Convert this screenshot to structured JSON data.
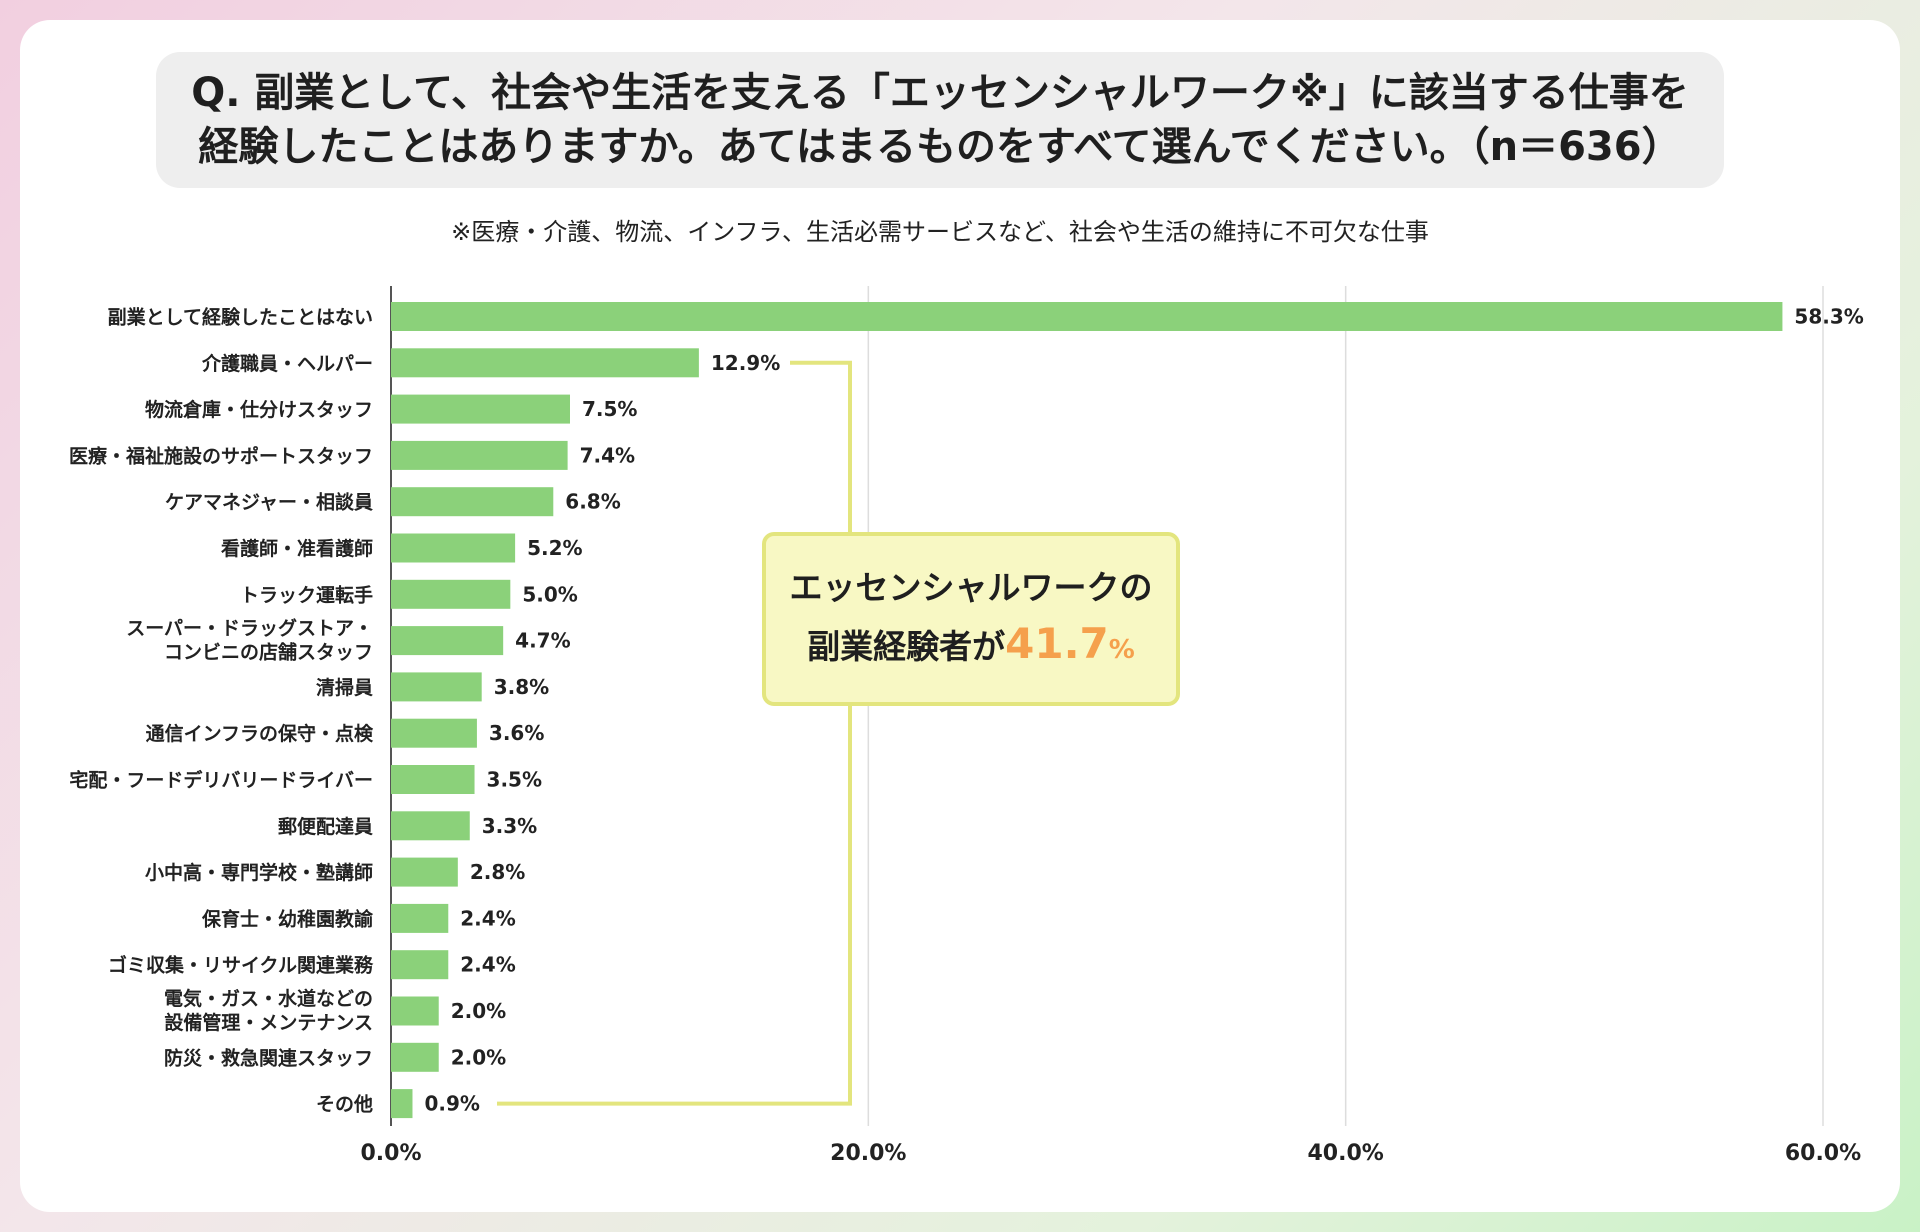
{
  "title": {
    "line1": "Q. 副業として、社会や生活を支える「エッセンシャルワーク※」に該当する仕事を",
    "line2": "経験したことはありますか。あてはまるものをすべて選んでください。（n＝636）"
  },
  "note": "※医療・介護、物流、インフラ、生活必需サービスなど、社会や生活の維持に不可欠な仕事",
  "callout": {
    "line1": "エッセンシャルワークの",
    "line2_prefix": "副業経験者が",
    "value": "41.7",
    "unit": "%"
  },
  "colors": {
    "bar": "#8bd17a",
    "bracket": "#e3e57e",
    "accent": "#f5a04c"
  },
  "chart_data": {
    "type": "bar",
    "orientation": "horizontal",
    "categories": [
      "副業として経験したことはない",
      "介護職員・ヘルパー",
      "物流倉庫・仕分けスタッフ",
      "医療・福祉施設のサポートスタッフ",
      "ケアマネジャー・相談員",
      "看護師・准看護師",
      "トラック運転手",
      "スーパー・ドラッグストア・\nコンビニの店舗スタッフ",
      "清掃員",
      "通信インフラの保守・点検",
      "宅配・フードデリバリードライバー",
      "郵便配達員",
      "小中高・専門学校・塾講師",
      "保育士・幼稚園教諭",
      "ゴミ収集・リサイクル関連業務",
      "電気・ガス・水道などの\n設備管理・メンテナンス",
      "防災・救急関連スタッフ",
      "その他"
    ],
    "values": [
      58.3,
      12.9,
      7.5,
      7.4,
      6.8,
      5.2,
      5.0,
      4.7,
      3.8,
      3.6,
      3.5,
      3.3,
      2.8,
      2.4,
      2.4,
      2.0,
      2.0,
      0.9
    ],
    "value_labels": [
      "58.3%",
      "12.9%",
      "7.5%",
      "7.4%",
      "6.8%",
      "5.2%",
      "5.0%",
      "4.7%",
      "3.8%",
      "3.6%",
      "3.5%",
      "3.3%",
      "2.8%",
      "2.4%",
      "2.4%",
      "2.0%",
      "2.0%",
      "0.9%"
    ],
    "xlim": [
      0,
      60
    ],
    "xticks": [
      0,
      20,
      40,
      60
    ],
    "xtick_labels": [
      "0.0%",
      "20.0%",
      "40.0%",
      "60.0%"
    ],
    "grid": true,
    "legend": "none"
  }
}
